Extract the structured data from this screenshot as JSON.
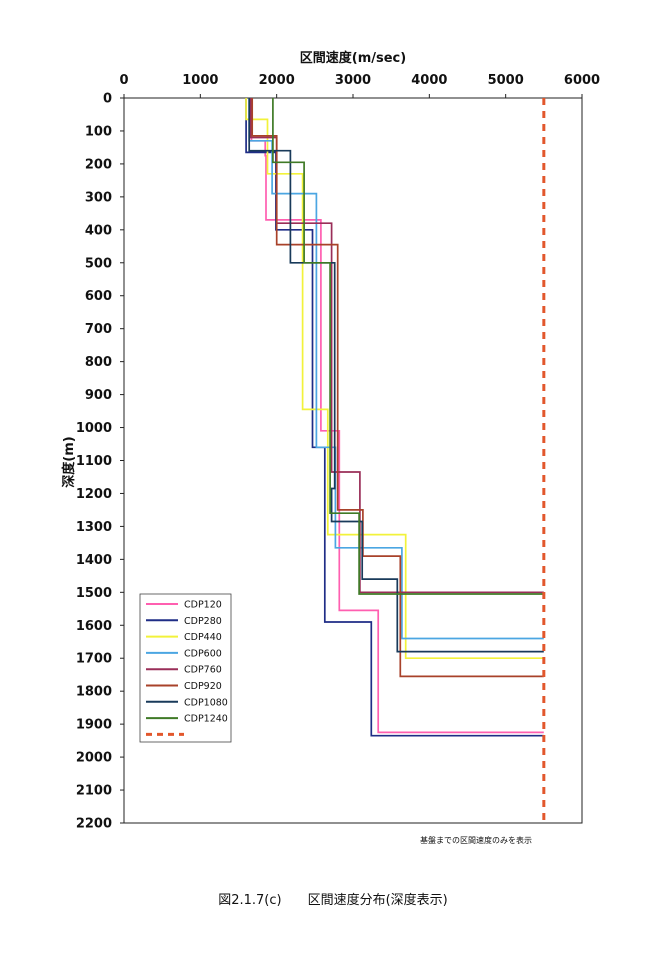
{
  "chart_data": {
    "type": "line",
    "title": "区間速度(m/sec)",
    "ylabel": "深度(m)",
    "xlim": [
      0,
      6000
    ],
    "ylim": [
      0,
      2200
    ],
    "y_inverted": true,
    "x_axis_position": "top",
    "xticks": [
      "0",
      "1000",
      "2000",
      "3000",
      "4000",
      "5000",
      "6000"
    ],
    "yticks": [
      "0",
      "100",
      "200",
      "300",
      "400",
      "500",
      "600",
      "700",
      "800",
      "900",
      "1000",
      "1100",
      "1200",
      "1300",
      "1400",
      "1500",
      "1600",
      "1700",
      "1800",
      "1900",
      "2000",
      "2100",
      "2200"
    ],
    "grid": false,
    "legend_position": "bottom-left",
    "series": [
      {
        "name": "CDP120",
        "color": "#ff5fb0",
        "steps": [
          [
            1670,
            0
          ],
          [
            1670,
            130
          ],
          [
            1850,
            130
          ],
          [
            1850,
            175
          ],
          [
            1860,
            175
          ],
          [
            1860,
            370
          ],
          [
            2580,
            370
          ],
          [
            2580,
            1010
          ],
          [
            2820,
            1010
          ],
          [
            2820,
            1555
          ],
          [
            3330,
            1555
          ],
          [
            3330,
            1925
          ],
          [
            5500,
            1925
          ]
        ]
      },
      {
        "name": "CDP280",
        "color": "#1f2d86",
        "steps": [
          [
            1600,
            0
          ],
          [
            1600,
            165
          ],
          [
            1990,
            165
          ],
          [
            1990,
            400
          ],
          [
            2470,
            400
          ],
          [
            2470,
            1060
          ],
          [
            2630,
            1060
          ],
          [
            2630,
            1590
          ],
          [
            3240,
            1590
          ],
          [
            3240,
            1935
          ],
          [
            5500,
            1935
          ]
        ]
      },
      {
        "name": "CDP440",
        "color": "#f2f23a",
        "steps": [
          [
            1600,
            0
          ],
          [
            1600,
            65
          ],
          [
            1880,
            65
          ],
          [
            1880,
            230
          ],
          [
            2340,
            230
          ],
          [
            2340,
            945
          ],
          [
            2670,
            945
          ],
          [
            2670,
            1325
          ],
          [
            3690,
            1325
          ],
          [
            3690,
            1700
          ],
          [
            5500,
            1700
          ]
        ]
      },
      {
        "name": "CDP600",
        "color": "#4ba6e2",
        "steps": [
          [
            1640,
            0
          ],
          [
            1640,
            130
          ],
          [
            1940,
            130
          ],
          [
            1940,
            290
          ],
          [
            2520,
            290
          ],
          [
            2520,
            1060
          ],
          [
            2770,
            1060
          ],
          [
            2770,
            1365
          ],
          [
            3640,
            1365
          ],
          [
            3640,
            1640
          ],
          [
            5500,
            1640
          ]
        ]
      },
      {
        "name": "CDP760",
        "color": "#9a2e58",
        "steps": [
          [
            1660,
            0
          ],
          [
            1660,
            120
          ],
          [
            2000,
            120
          ],
          [
            2000,
            380
          ],
          [
            2720,
            380
          ],
          [
            2720,
            1135
          ],
          [
            3090,
            1135
          ],
          [
            3090,
            1500
          ],
          [
            5500,
            1500
          ]
        ]
      },
      {
        "name": "CDP920",
        "color": "#a8422a",
        "steps": [
          [
            1680,
            0
          ],
          [
            1680,
            115
          ],
          [
            2000,
            115
          ],
          [
            2000,
            445
          ],
          [
            2800,
            445
          ],
          [
            2800,
            1250
          ],
          [
            3130,
            1250
          ],
          [
            3130,
            1390
          ],
          [
            3620,
            1390
          ],
          [
            3620,
            1755
          ],
          [
            5500,
            1755
          ]
        ]
      },
      {
        "name": "CDP1080",
        "color": "#193a5a",
        "steps": [
          [
            1640,
            0
          ],
          [
            1640,
            160
          ],
          [
            2180,
            160
          ],
          [
            2180,
            500
          ],
          [
            2760,
            500
          ],
          [
            2760,
            1185
          ],
          [
            2720,
            1185
          ],
          [
            2720,
            1285
          ],
          [
            3120,
            1285
          ],
          [
            3120,
            1460
          ],
          [
            3580,
            1460
          ],
          [
            3580,
            1680
          ],
          [
            5500,
            1680
          ]
        ]
      },
      {
        "name": "CDP1240",
        "color": "#3f7a26",
        "steps": [
          [
            1950,
            0
          ],
          [
            1950,
            195
          ],
          [
            2360,
            195
          ],
          [
            2360,
            500
          ],
          [
            2700,
            500
          ],
          [
            2700,
            1260
          ],
          [
            3080,
            1260
          ],
          [
            3080,
            1505
          ],
          [
            5500,
            1505
          ]
        ]
      }
    ],
    "basement_line": {
      "x": 5500,
      "y_range": [
        0,
        2200
      ],
      "color": "#e2572c",
      "style": "dashed"
    },
    "annotation": "基盤までの区間速度のみを表示"
  },
  "caption": "図2.1.7(c)　　区間速度分布(深度表示)"
}
